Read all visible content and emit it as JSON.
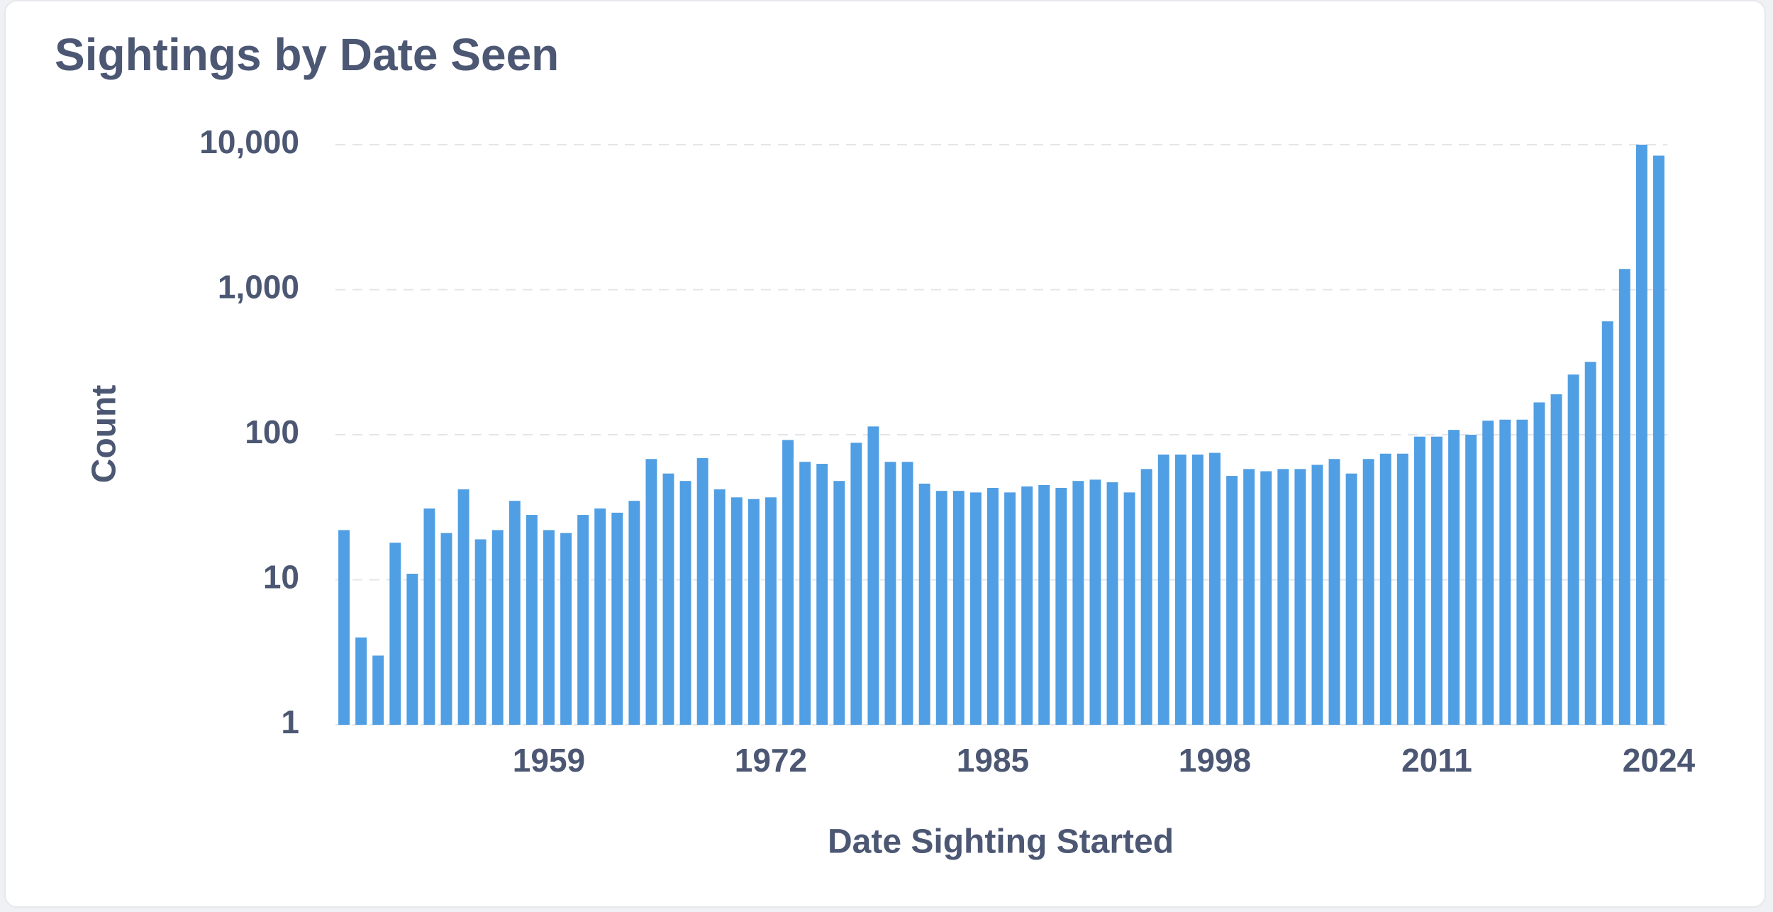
{
  "chart_data": {
    "type": "bar",
    "title": "Sightings by Date Seen",
    "x_label": "Date Sighting Started",
    "y_label": "Count",
    "x": [
      1947,
      1948,
      1949,
      1950,
      1951,
      1952,
      1953,
      1954,
      1955,
      1956,
      1957,
      1958,
      1959,
      1960,
      1961,
      1962,
      1963,
      1964,
      1965,
      1966,
      1967,
      1968,
      1969,
      1970,
      1971,
      1972,
      1973,
      1974,
      1975,
      1976,
      1977,
      1978,
      1979,
      1980,
      1981,
      1982,
      1983,
      1984,
      1985,
      1986,
      1987,
      1988,
      1989,
      1990,
      1991,
      1992,
      1993,
      1994,
      1995,
      1996,
      1997,
      1998,
      1999,
      2000,
      2001,
      2002,
      2003,
      2004,
      2005,
      2006,
      2007,
      2008,
      2009,
      2010,
      2011,
      2012,
      2013,
      2014,
      2015,
      2016,
      2017,
      2018,
      2019,
      2020,
      2021,
      2022,
      2023,
      2024
    ],
    "values": [
      22,
      4,
      3,
      18,
      11,
      31,
      21,
      42,
      19,
      22,
      35,
      28,
      22,
      21,
      28,
      31,
      29,
      35,
      68,
      54,
      48,
      69,
      42,
      37,
      36,
      37,
      92,
      65,
      63,
      48,
      88,
      114,
      65,
      65,
      46,
      41,
      41,
      40,
      43,
      40,
      44,
      45,
      43,
      48,
      49,
      47,
      40,
      58,
      73,
      73,
      73,
      75,
      52,
      58,
      56,
      58,
      58,
      62,
      68,
      54,
      68,
      74,
      74,
      97,
      97,
      108,
      100,
      125,
      127,
      127,
      167,
      190,
      260,
      318,
      605,
      1390,
      10000,
      8400
    ],
    "color": "#509ee3",
    "xlim": [
      1946.5,
      2024.5
    ],
    "xticks": [
      1959,
      1972,
      1985,
      1998,
      2011,
      2024
    ],
    "ylim": [
      1,
      10000
    ],
    "log_scale": true,
    "yticks": [
      1,
      10,
      100,
      {
        "value": 1000,
        "label": "1,000"
      },
      {
        "value": 10000,
        "label": "10,000"
      }
    ],
    "grid": true
  }
}
